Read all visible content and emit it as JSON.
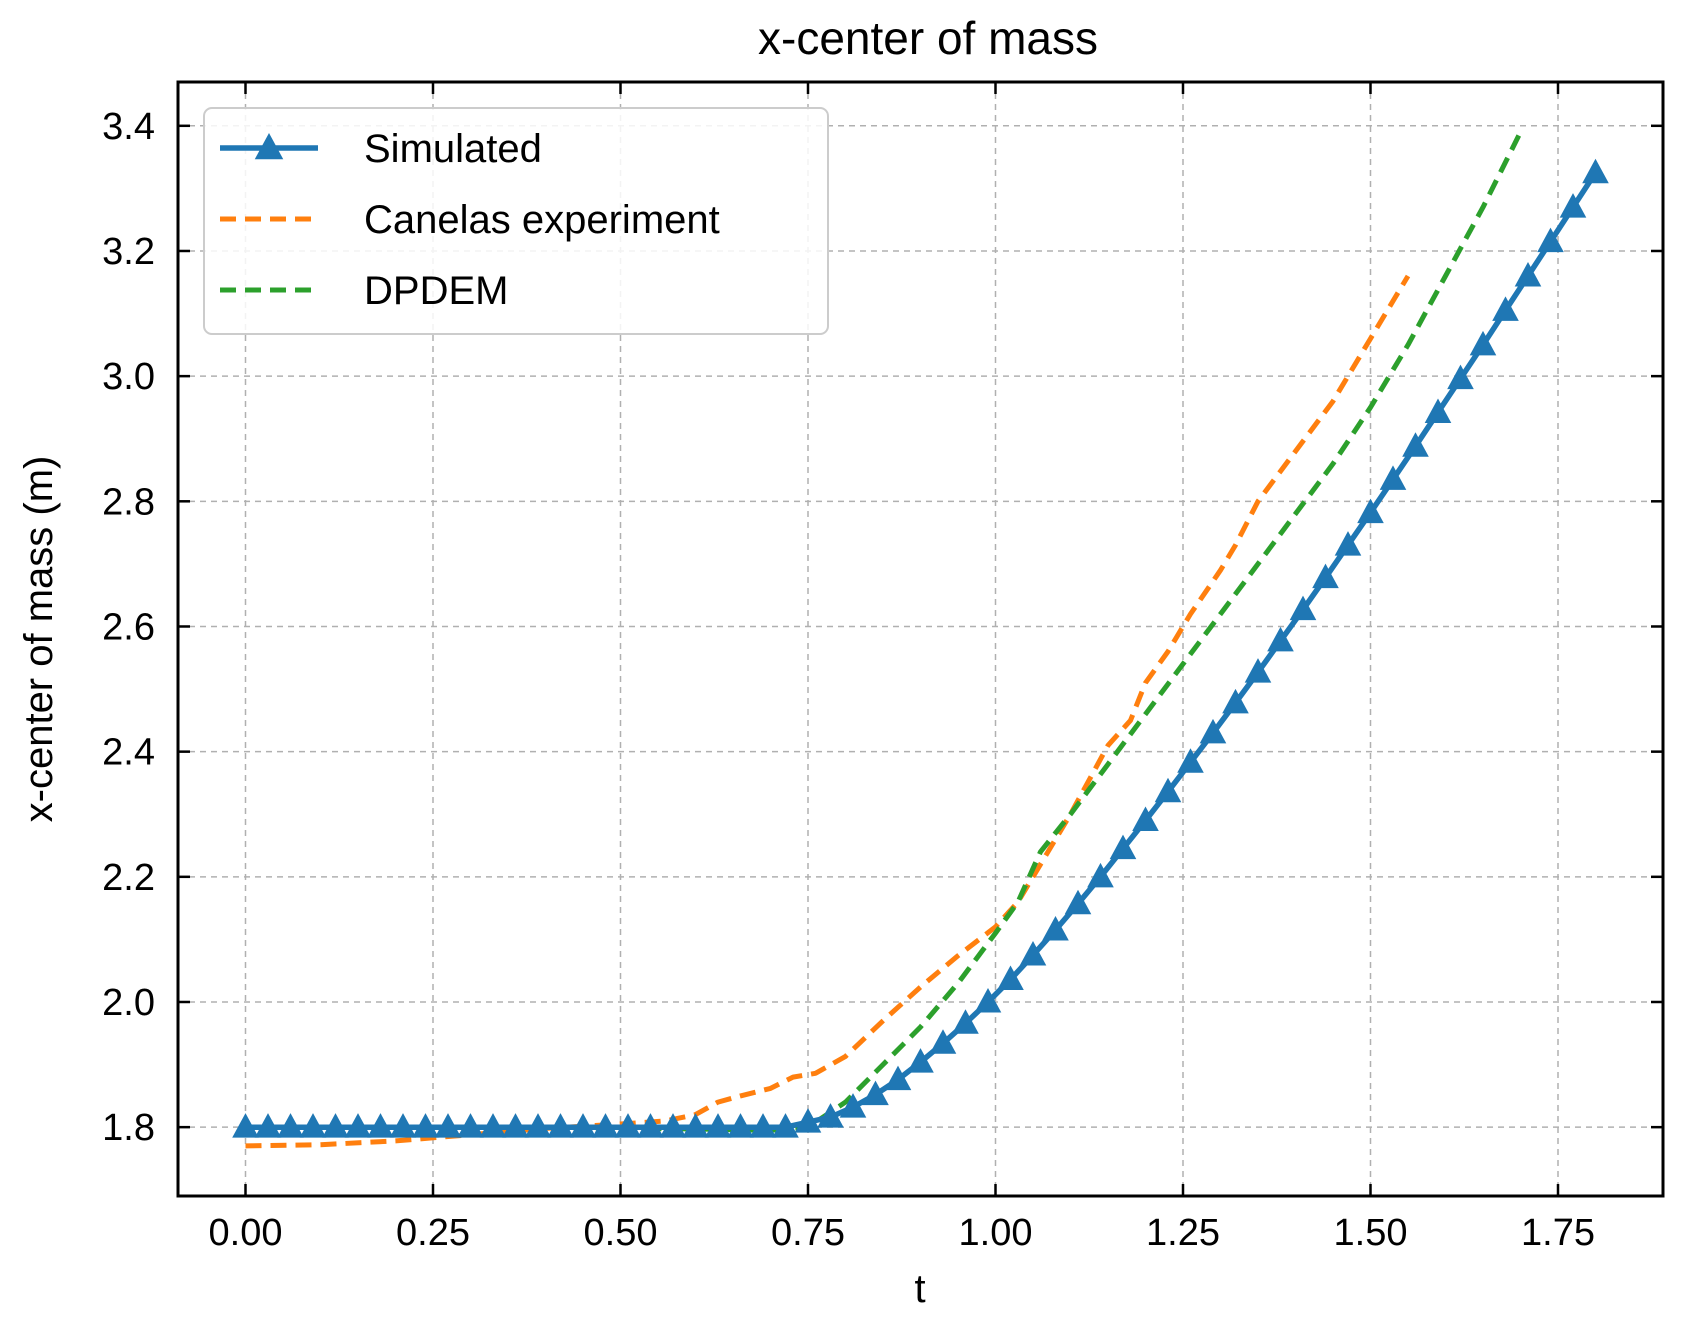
{
  "chart_data": {
    "type": "line",
    "title": "x-center of mass",
    "xlabel": "t",
    "ylabel": "x-center of mass (m)",
    "xlim": [
      -0.09,
      1.89
    ],
    "ylim": [
      1.69,
      3.47
    ],
    "xticks": [
      0.0,
      0.25,
      0.5,
      0.75,
      1.0,
      1.25,
      1.5,
      1.75
    ],
    "xtick_labels": [
      "0.00",
      "0.25",
      "0.50",
      "0.75",
      "1.00",
      "1.25",
      "1.50",
      "1.75"
    ],
    "yticks": [
      1.8,
      2.0,
      2.2,
      2.4,
      2.6,
      2.8,
      3.0,
      3.2,
      3.4
    ],
    "ytick_labels": [
      "1.8",
      "2.0",
      "2.2",
      "2.4",
      "2.6",
      "2.8",
      "3.0",
      "3.2",
      "3.4"
    ],
    "grid": true,
    "legend_position": "top-left",
    "series": [
      {
        "name": "Simulated",
        "color": "#1f77b4",
        "style": "solid",
        "marker": "triangle-up",
        "x": [
          0.0,
          0.03,
          0.06,
          0.09,
          0.12,
          0.15,
          0.18,
          0.21,
          0.24,
          0.27,
          0.3,
          0.33,
          0.36,
          0.39,
          0.42,
          0.45,
          0.48,
          0.51,
          0.54,
          0.57,
          0.6,
          0.63,
          0.66,
          0.69,
          0.72,
          0.75,
          0.78,
          0.81,
          0.84,
          0.87,
          0.9,
          0.93,
          0.96,
          0.99,
          1.02,
          1.05,
          1.08,
          1.11,
          1.14,
          1.17,
          1.2,
          1.23,
          1.26,
          1.29,
          1.32,
          1.35,
          1.38,
          1.41,
          1.44,
          1.47,
          1.5,
          1.53,
          1.56,
          1.59,
          1.62,
          1.65,
          1.68,
          1.71,
          1.74,
          1.77,
          1.8
        ],
        "y": [
          1.8,
          1.8,
          1.8,
          1.8,
          1.8,
          1.8,
          1.8,
          1.8,
          1.8,
          1.8,
          1.8,
          1.8,
          1.8,
          1.8,
          1.8,
          1.8,
          1.8,
          1.8,
          1.8,
          1.8,
          1.8,
          1.8,
          1.8,
          1.8,
          1.8,
          1.808,
          1.816,
          1.832,
          1.852,
          1.876,
          1.904,
          1.934,
          1.966,
          2.0,
          2.036,
          2.075,
          2.115,
          2.157,
          2.2,
          2.245,
          2.29,
          2.336,
          2.383,
          2.43,
          2.478,
          2.527,
          2.577,
          2.627,
          2.678,
          2.73,
          2.782,
          2.835,
          2.888,
          2.942,
          2.996,
          3.05,
          3.105,
          3.16,
          3.215,
          3.27,
          3.325
        ]
      },
      {
        "name": "Canelas experiment",
        "color": "#ff7f0e",
        "style": "dashed",
        "x": [
          0.0,
          0.1,
          0.2,
          0.3,
          0.4,
          0.5,
          0.56,
          0.6,
          0.63,
          0.66,
          0.7,
          0.73,
          0.76,
          0.8,
          0.85,
          0.9,
          0.95,
          1.0,
          1.03,
          1.06,
          1.1,
          1.15,
          1.18,
          1.2,
          1.23,
          1.26,
          1.3,
          1.32,
          1.35,
          1.4,
          1.45,
          1.5,
          1.55
        ],
        "y": [
          1.77,
          1.772,
          1.778,
          1.788,
          1.798,
          1.805,
          1.81,
          1.82,
          1.84,
          1.85,
          1.862,
          1.88,
          1.886,
          1.913,
          1.97,
          2.024,
          2.074,
          2.12,
          2.16,
          2.22,
          2.3,
          2.41,
          2.45,
          2.51,
          2.56,
          2.62,
          2.69,
          2.73,
          2.8,
          2.88,
          2.96,
          3.06,
          3.16
        ]
      },
      {
        "name": "DPDEM",
        "color": "#2ca02c",
        "style": "dashed",
        "x": [
          0.0,
          0.2,
          0.4,
          0.6,
          0.7,
          0.75,
          0.8,
          0.85,
          0.9,
          0.95,
          1.0,
          1.03,
          1.06,
          1.1,
          1.15,
          1.2,
          1.25,
          1.3,
          1.35,
          1.4,
          1.45,
          1.5,
          1.55,
          1.6,
          1.65,
          1.7
        ],
        "y": [
          1.8,
          1.8,
          1.8,
          1.797,
          1.795,
          1.8,
          1.84,
          1.9,
          1.96,
          2.03,
          2.11,
          2.16,
          2.24,
          2.3,
          2.38,
          2.46,
          2.54,
          2.62,
          2.7,
          2.78,
          2.86,
          2.95,
          3.05,
          3.16,
          3.27,
          3.39
        ]
      }
    ]
  }
}
